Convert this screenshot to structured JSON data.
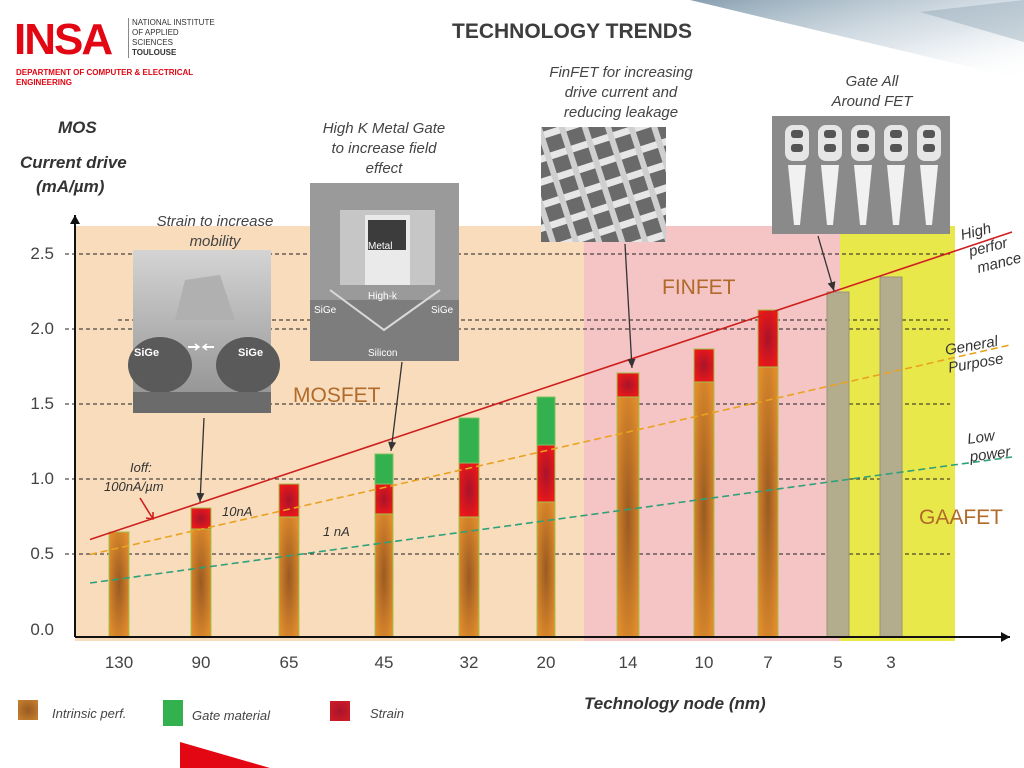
{
  "header": {
    "logo_text": "INSA",
    "logo_lines": [
      "NATIONAL INSTITUTE",
      "OF APPLIED",
      "SCIENCES",
      "TOULOUSE"
    ],
    "department_lines": [
      "DEPARTMENT OF COMPUTER & ELECTRICAL",
      "ENGINEERING"
    ],
    "title": "TECHNOLOGY TRENDS"
  },
  "colors": {
    "brand_red": "#e30613",
    "mosfet_zone": "#f8dcbc",
    "finfet_zone": "#f5c4c4",
    "gaafet_zone": "#e9e84a",
    "intrinsic": "#c8832e",
    "gate": "#32b14e",
    "strain": "#d31d26",
    "gaa_bar": "#b3ad8d",
    "high_perf_line": "#cf1f1f",
    "general_line": "#e9a21f",
    "low_power_line": "#2ea07a"
  },
  "chart_data": {
    "type": "bar",
    "title": "TECHNOLOGY TRENDS",
    "ylabel_lines": [
      "MOS",
      "Current drive",
      "(mA/µm)"
    ],
    "xlabel": "Technology node (nm)",
    "categories": [
      "130",
      "90",
      "65",
      "45",
      "32",
      "20",
      "14",
      "10",
      "7",
      "5",
      "3"
    ],
    "ylim": [
      0,
      2.75
    ],
    "yticks": [
      0.0,
      0.5,
      1.0,
      1.5,
      2.0,
      2.5
    ],
    "ytick_labels": [
      "0.0",
      "0.5",
      "1.0",
      "1.5",
      "2.0",
      "2.5"
    ],
    "series": [
      {
        "name": "Intrinsic perf.",
        "values": [
          0.7,
          0.72,
          0.8,
          0.82,
          0.8,
          0.9,
          1.6,
          1.7,
          1.8,
          2.3,
          2.4
        ]
      },
      {
        "name": "Strain",
        "values": [
          0,
          0.14,
          0.22,
          0.2,
          0.36,
          0.38,
          0.16,
          0.22,
          0.38,
          0,
          0
        ]
      },
      {
        "name": "Gate material",
        "values": [
          0,
          0,
          0,
          0.2,
          0.3,
          0.32,
          0,
          0,
          0,
          0,
          0
        ]
      }
    ],
    "zones": [
      {
        "label": "MOSFET",
        "from": "130",
        "to": "20"
      },
      {
        "label": "FINFET",
        "from": "14",
        "to": "7"
      },
      {
        "label": "GAAFET",
        "from": "5",
        "to": "3"
      }
    ],
    "trend_lines": [
      {
        "label_lines": [
          "High",
          "perfor",
          "mance"
        ],
        "from": 0.65,
        "to": 2.7
      },
      {
        "label_lines": [
          "General",
          "Purpose"
        ],
        "from": 0.55,
        "to": 1.95
      },
      {
        "label_lines": [
          "Low",
          "power"
        ],
        "from": 0.36,
        "to": 1.2
      }
    ],
    "ioff_labels": [
      "Ioff:",
      "100nA/µm",
      "10nA",
      "1 nA"
    ],
    "annotations": [
      {
        "lines": [
          "Strain to increase",
          "mobility"
        ],
        "node": "90"
      },
      {
        "lines": [
          "High K Metal Gate",
          "to increase field",
          "effect"
        ],
        "node": "45"
      },
      {
        "lines": [
          "FinFET for increasing",
          "drive current and",
          "reducing leakage"
        ],
        "node": "14"
      },
      {
        "lines": [
          "Gate All",
          "Around FET"
        ],
        "node": "5"
      }
    ],
    "micrograph_labels": {
      "strain": [
        "SiGe",
        "SiGe"
      ],
      "hkmg": [
        "Metal",
        "High-k",
        "SiGe",
        "SiGe",
        "Silicon"
      ]
    },
    "legend": [
      "Intrinsic perf.",
      "Gate material",
      "Strain"
    ]
  }
}
